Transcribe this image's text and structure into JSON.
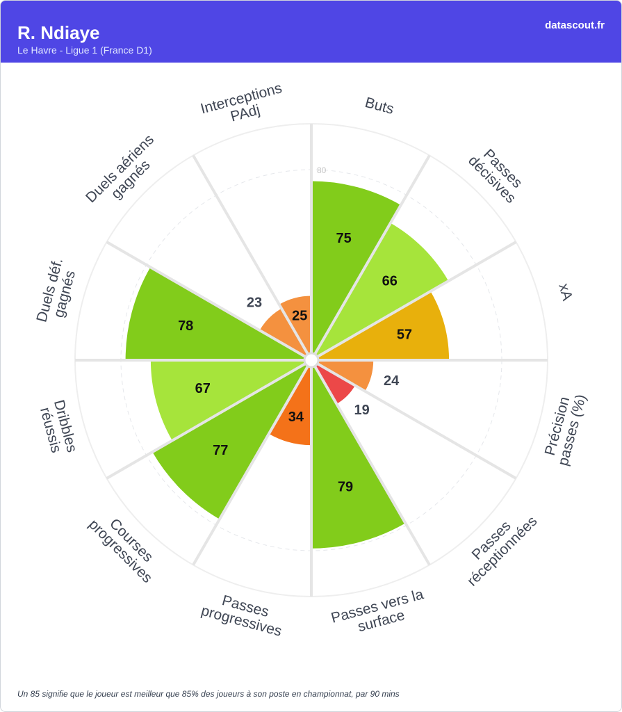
{
  "header": {
    "title": "R. Ndiaye",
    "subtitle": "Le Havre - Ligue 1 (France D1)",
    "brand": "datascout.fr"
  },
  "chart_data": {
    "type": "polar-bar",
    "categories": [
      [
        "Buts"
      ],
      [
        "Passes",
        "décisives"
      ],
      [
        "xA"
      ],
      [
        "Précision",
        "passes (%)"
      ],
      [
        "Passes",
        "réceptionnées"
      ],
      [
        "Passes vers la",
        "surface"
      ],
      [
        "Passes",
        "progressives"
      ],
      [
        "Courses",
        "progressives"
      ],
      [
        "Dribbles",
        "réussis"
      ],
      [
        "Duels déf.",
        "gagnés"
      ],
      [
        "Duels aériens",
        "gagnés"
      ],
      [
        "Interceptions",
        "PAdj"
      ]
    ],
    "values": [
      75,
      66,
      57,
      24,
      19,
      79,
      34,
      77,
      67,
      78,
      23,
      25
    ],
    "colors": [
      "#82cc1b",
      "#a6e43b",
      "#e8b00c",
      "#f4913f",
      "#ec4848",
      "#82cc1b",
      "#f47219",
      "#82cc1b",
      "#a6e43b",
      "#82cc1b",
      "#f4913f",
      "#f4913f"
    ],
    "ylim": [
      0,
      100
    ],
    "yticks": [
      80
    ],
    "grid": true
  },
  "footer": {
    "note": "Un 85 signifie que le joueur est meilleur que 85% des joueurs à son poste en championnat, par 90 mins"
  }
}
